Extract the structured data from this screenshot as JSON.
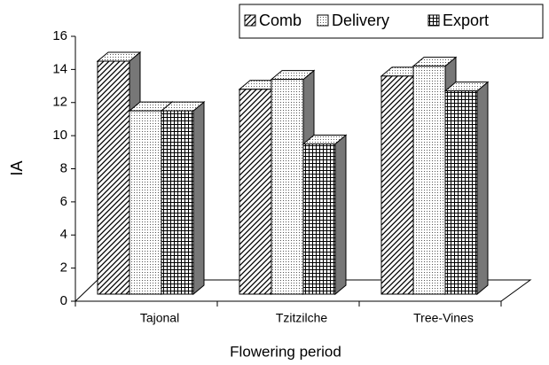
{
  "chart_data": {
    "type": "bar3d",
    "x_label": "Flowering period",
    "y_label": "IA",
    "categories": [
      "Tajonal",
      "Tzitzilche",
      "Tree-Vines"
    ],
    "series": [
      {
        "name": "Comb",
        "pattern": "hatch",
        "values": [
          14.5,
          12.8,
          13.6
        ]
      },
      {
        "name": "Delivery",
        "pattern": "dots",
        "values": [
          11.5,
          13.4,
          14.2
        ]
      },
      {
        "name": "Export",
        "pattern": "grid",
        "values": [
          11.5,
          9.5,
          12.7
        ]
      }
    ],
    "ylim": [
      0,
      16
    ],
    "yticks": [
      0,
      2,
      4,
      6,
      8,
      10,
      12,
      14,
      16
    ],
    "legend": "top-right"
  }
}
